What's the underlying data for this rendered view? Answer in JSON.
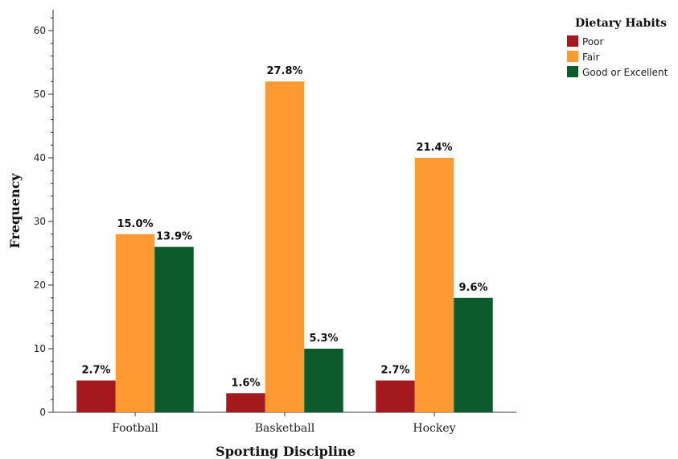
{
  "chart_data": {
    "type": "bar",
    "title": "",
    "xlabel": "Sporting Discipline",
    "ylabel": "Frequency",
    "ylim": [
      0,
      62
    ],
    "yticks": [
      0,
      10,
      20,
      30,
      40,
      50,
      60
    ],
    "grid": false,
    "legend_position": "top-right",
    "legend_title": "Dietary Habits",
    "categories": [
      "Football",
      "Basketball",
      "Hockey"
    ],
    "series": [
      {
        "name": "Poor",
        "color": "#a3191d",
        "values": [
          5,
          3,
          5
        ],
        "labels": [
          "2.7%",
          "1.6%",
          "2.7%"
        ]
      },
      {
        "name": "Fair",
        "color": "#ff9a33",
        "values": [
          28,
          52,
          40
        ],
        "labels": [
          "15.0%",
          "27.8%",
          "21.4%"
        ]
      },
      {
        "name": "Good or Excellent",
        "color": "#0d5a2c",
        "values": [
          26,
          10,
          18
        ],
        "labels": [
          "13.9%",
          "5.3%",
          "9.6%"
        ]
      }
    ]
  }
}
